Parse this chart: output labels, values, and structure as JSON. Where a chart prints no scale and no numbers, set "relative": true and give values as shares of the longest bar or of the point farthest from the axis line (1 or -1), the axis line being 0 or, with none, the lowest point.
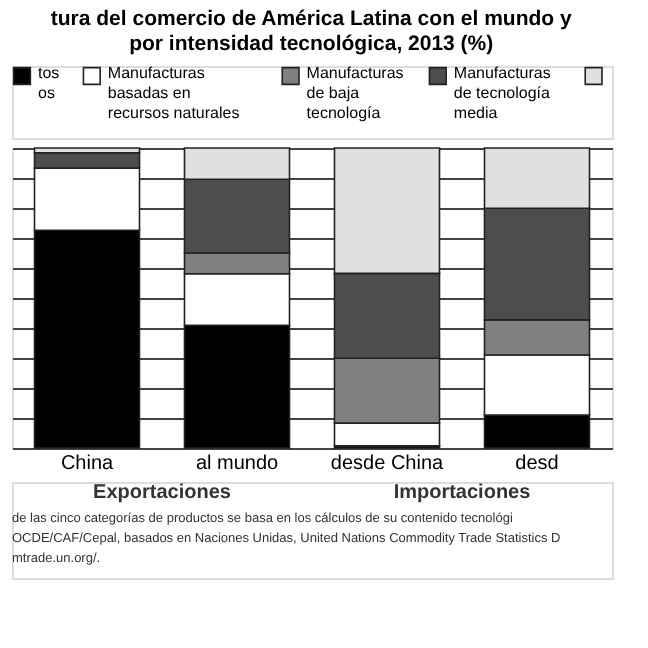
{
  "chart_data": {
    "type": "bar",
    "title": "tura del comercio de América Latina con el mundo y\npor intensidad tecnológica, 2013 (%)",
    "categories": [
      "China",
      "al mundo",
      "desde China",
      "desd"
    ],
    "stacked": true,
    "relative": true,
    "grid": "y",
    "legend": "top",
    "series": [
      {
        "name": "tos\nos",
        "color": "#000000",
        "values": [
          0.726,
          0.409,
          0.007,
          0.11
        ]
      },
      {
        "name": "Manufacturas\nbasadas en\nrecursos naturales",
        "color": "#ffffff",
        "values": [
          0.207,
          0.172,
          0.076,
          0.2
        ]
      },
      {
        "name": "Manufacturas\nde baja\ntecnología",
        "color": "#808080",
        "values": [
          0.0,
          0.069,
          0.216,
          0.117
        ]
      },
      {
        "name": "Manufacturas\nde tecnología\nmedia",
        "color": "#4d4d4d",
        "values": [
          0.051,
          0.246,
          0.283,
          0.372
        ]
      },
      {
        "color": "#e0e0e0",
        "values": [
          0.016,
          0.104,
          0.418,
          0.201
        ]
      }
    ],
    "annotations": [
      "Exportaciones",
      "Importaciones",
      "de las cinco categorías de productos se basa en los cálculos de su contenido tecnológi",
      "OCDE/CAF/Cepal, basados en Naciones Unidas, United Nations Commodity Trade Statistics D",
      "mtrade.un.org/."
    ]
  }
}
